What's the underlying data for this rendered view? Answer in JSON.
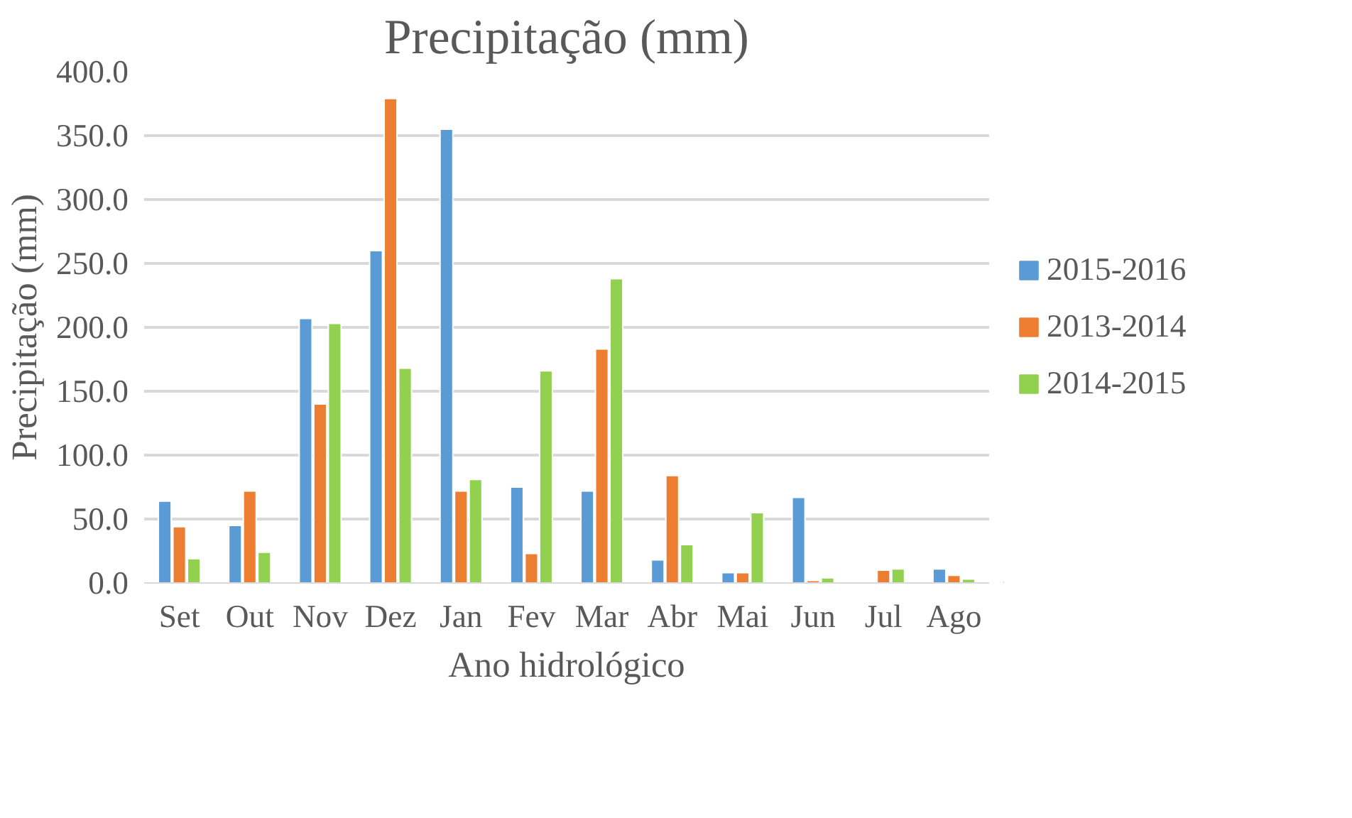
{
  "chart_data": {
    "type": "bar",
    "title": "Precipitação (mm)",
    "xlabel": "Ano hidrológico",
    "ylabel": "Precipitação (mm)",
    "categories": [
      "Set",
      "Out",
      "Nov",
      "Dez",
      "Jan",
      "Fev",
      "Mar",
      "Abr",
      "Mai",
      "Jun",
      "Jul",
      "Ago"
    ],
    "series": [
      {
        "name": "2015-2016",
        "color": "#5b9bd5",
        "values": [
          64,
          45,
          207,
          260,
          355,
          75,
          72,
          18,
          8,
          67,
          null,
          11
        ]
      },
      {
        "name": "2013-2014",
        "color": "#ed7d31",
        "values": [
          44,
          72,
          140,
          379,
          72,
          23,
          183,
          84,
          8,
          2,
          10,
          6
        ]
      },
      {
        "name": "2014-2015",
        "color": "#92d050",
        "values": [
          19,
          24,
          203,
          168,
          81,
          166,
          238,
          30,
          55,
          4,
          11,
          3
        ]
      }
    ],
    "ylim": [
      0,
      400
    ],
    "yticks": [
      {
        "value": 0,
        "label": "0.0"
      },
      {
        "value": 50,
        "label": "50.0"
      },
      {
        "value": 100,
        "label": "100.0"
      },
      {
        "value": 150,
        "label": "150.0"
      },
      {
        "value": 200,
        "label": "200.0"
      },
      {
        "value": 250,
        "label": "250.0"
      },
      {
        "value": 300,
        "label": "300.0"
      },
      {
        "value": 350,
        "label": "350.0"
      },
      {
        "value": 400,
        "label": "400.0"
      }
    ],
    "grid": "y",
    "legend": "right"
  }
}
